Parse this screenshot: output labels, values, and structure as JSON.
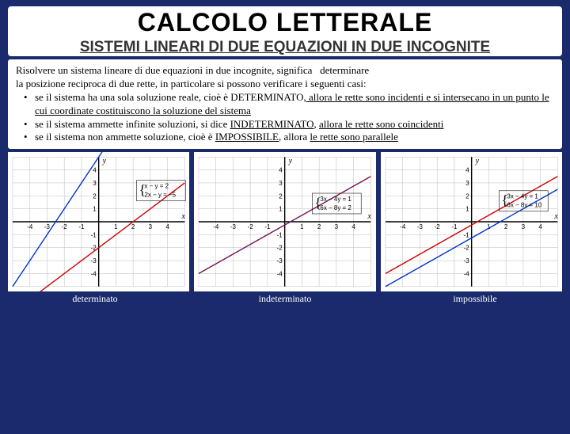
{
  "header": {
    "title": "CALCOLO LETTERALE",
    "subtitle": "SISTEMI LINEARI DI DUE EQUAZIONI IN DUE INCOGNITE"
  },
  "body": {
    "intro1": "Risolvere un sistema lineare di due equazioni in due incognite, significa   determinare",
    "intro2": "la posizione reciproca di due rette, in particolare si possono verificare i seguenti casi:",
    "bullet1_a": "se il sistema ha una sola soluzione reale, cioè è DETERMINATO",
    "bullet1_b": ", allora ",
    "bullet1_c": "le rette sono incidenti e si intersecano in un punto le cui coordinate costituiscono la soluzione del sistema",
    "bullet2_a": "se il sistema ammette infinite soluzioni, si dice ",
    "bullet2_b": "INDETERMINATO",
    "bullet2_c": ", ",
    "bullet2_d": "allora le rette sono coincidenti",
    "bullet3_a": "se il sistema non ammette soluzione, cioè è ",
    "bullet3_b": "IMPOSSIBILE",
    "bullet3_c": ", allora ",
    "bullet3_d": "le rette sono parallele"
  },
  "charts": {
    "common": {
      "xmin": -5,
      "xmax": 5,
      "ymin": -5,
      "ymax": 5,
      "tick_step": 1,
      "grid_color": "#bbbbbb",
      "axis_color": "#000000",
      "bg": "#ffffff",
      "tick_labels_x": [
        -4,
        -3,
        -2,
        -1,
        1,
        2,
        3,
        4
      ],
      "tick_labels_y": [
        -4,
        -3,
        -2,
        -1,
        1,
        2,
        3,
        4
      ],
      "label_fontsize": 8
    },
    "panels": [
      {
        "id": "determinato",
        "caption": "determinato",
        "eq1": "x − y = 2",
        "eq2": "2x − y = −5",
        "eqbox_pos": [
          2.2,
          3.2
        ],
        "lines": [
          {
            "color": "#cc0000",
            "width": 1.4,
            "pts": [
              [
                -5,
                -7
              ],
              [
                5,
                3
              ]
            ]
          },
          {
            "color": "#0033cc",
            "width": 1.4,
            "pts": [
              [
                -5,
                -5
              ],
              [
                5,
                15
              ]
            ]
          }
        ]
      },
      {
        "id": "indeterminato",
        "caption": "indeterminato",
        "eq1": "3x − 4y = 1",
        "eq2": "6x − 8y = 2",
        "eqbox_pos": [
          1.6,
          2.2
        ],
        "lines": [
          {
            "color": "#cc0000",
            "width": 1.4,
            "pts": [
              [
                -5,
                -4
              ],
              [
                5,
                3.5
              ]
            ]
          },
          {
            "color": "#0033cc",
            "width": 1.0,
            "pts": [
              [
                -5,
                -4
              ],
              [
                5,
                3.5
              ]
            ],
            "dash": "3,2"
          }
        ]
      },
      {
        "id": "impossibile",
        "caption": "impossibile",
        "eq1": "3x − 4y = 1",
        "eq2": "6x − 8y = 10",
        "eqbox_pos": [
          1.6,
          2.4
        ],
        "lines": [
          {
            "color": "#cc0000",
            "width": 1.4,
            "pts": [
              [
                -5,
                -4
              ],
              [
                5,
                3.5
              ]
            ]
          },
          {
            "color": "#0033cc",
            "width": 1.4,
            "pts": [
              [
                -5,
                -5
              ],
              [
                5,
                2.5
              ]
            ]
          }
        ]
      }
    ]
  }
}
